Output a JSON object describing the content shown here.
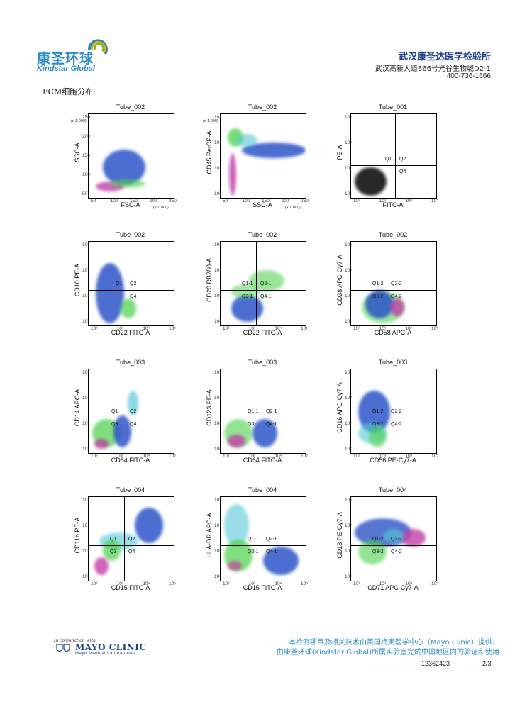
{
  "header": {
    "logo_cn": "康圣环球",
    "logo_en": "Kindstar Global",
    "org_name": "武汉康圣达医学检验所",
    "org_address": "武汉高新大道666号光谷生物城D2-1",
    "org_phone": "400-736-1666"
  },
  "section_title": "FCM细胞分布:",
  "plots": [
    {
      "title": "Tube_002",
      "xlabel": "FSC-A",
      "ylabel": "SSC-A",
      "scale_note": "(x 1,000)",
      "xticks": [
        "50",
        "100",
        "150",
        "200",
        "250"
      ],
      "yticks": [
        "250",
        "200",
        "150",
        "100",
        "50"
      ],
      "quads": []
    },
    {
      "title": "Tube_002",
      "xlabel": "SSC-A",
      "ylabel": "CD45 PerCP-A",
      "scale_note": "(x 1,000)",
      "xticks": [
        "50",
        "100",
        "150",
        "200",
        "250"
      ],
      "yticks": [
        "10⁵",
        "10⁴",
        "10³",
        "10²"
      ],
      "quads": []
    },
    {
      "title": "Tube_001",
      "xlabel": "FITC-A",
      "ylabel": "PE-A",
      "xticks": [
        "10²",
        "10³",
        "10⁴",
        "10⁵"
      ],
      "yticks": [
        "10⁵",
        "10⁴",
        "10³",
        "10²"
      ],
      "quads": [
        "Q1",
        "Q2",
        "Q4"
      ]
    },
    {
      "title": "Tube_002",
      "xlabel": "CD22 FITC-A",
      "ylabel": "CD10 PE-A",
      "xticks": [
        "10²",
        "10³",
        "10⁴",
        "10⁵"
      ],
      "yticks": [
        "10⁵",
        "10⁴",
        "10³",
        "10²"
      ],
      "quads": [
        "Q1",
        "Q2",
        "Q4"
      ]
    },
    {
      "title": "Tube_002",
      "xlabel": "CD22 FITC-A",
      "ylabel": "CD20 RB780-A",
      "xticks": [
        "10²",
        "10³",
        "10⁴",
        "10⁵"
      ],
      "yticks": [
        "10⁵",
        "10⁴",
        "10³",
        "10²"
      ],
      "quads": [
        "Q1-1",
        "Q2-1",
        "Q3-1",
        "Q4-1"
      ]
    },
    {
      "title": "Tube_002",
      "xlabel": "CD58 APC-A",
      "ylabel": "CD38 APC-Cy7-A",
      "xticks": [
        "10²",
        "10³",
        "10⁴",
        "10⁵"
      ],
      "yticks": [
        "10⁵",
        "10⁴",
        "10³",
        "10²"
      ],
      "quads": [
        "Q1-2",
        "Q2-2",
        "Q3-2",
        "Q4-2"
      ]
    },
    {
      "title": "Tube_003",
      "xlabel": "CD64 FITC-A",
      "ylabel": "CD14 APC-A",
      "xticks": [
        "10²",
        "10³",
        "10⁴",
        "10⁵"
      ],
      "yticks": [
        "10⁵",
        "10⁴",
        "10³",
        "10²"
      ],
      "quads": [
        "Q1",
        "Q2",
        "Q3",
        "Q4"
      ]
    },
    {
      "title": "Tube_003",
      "xlabel": "CD64 FITC-A",
      "ylabel": "CD123 PE-A",
      "xticks": [
        "10²",
        "10³",
        "10⁴",
        "10⁵"
      ],
      "yticks": [
        "10⁵",
        "10⁴",
        "10³",
        "10²"
      ],
      "quads": [
        "Q1-1",
        "Q2-1",
        "Q3-1",
        "Q4-1"
      ]
    },
    {
      "title": "Tube_003",
      "xlabel": "CD56 PE-Cy7-A",
      "ylabel": "CD16 APC-Cy7-A",
      "xticks": [
        "10²",
        "10³",
        "10⁴",
        "10⁵"
      ],
      "yticks": [
        "10⁵",
        "10⁴",
        "10³",
        "10²"
      ],
      "quads": [
        "Q1-2",
        "Q2-2",
        "Q3-2",
        "Q4-2"
      ]
    },
    {
      "title": "Tube_004",
      "xlabel": "CD15 FITC-A",
      "ylabel": "CD11b PE-A",
      "xticks": [
        "10²",
        "10³",
        "10⁴",
        "10⁵"
      ],
      "yticks": [
        "10⁵",
        "10⁴",
        "10³",
        "10²"
      ],
      "quads": [
        "Q1",
        "Q2",
        "Q3",
        "Q4"
      ]
    },
    {
      "title": "Tube_004",
      "xlabel": "CD15 FITC-A",
      "ylabel": "HLA-DR APC-A",
      "xticks": [
        "10²",
        "10³",
        "10⁴",
        "10⁵"
      ],
      "yticks": [
        "10⁵",
        "10⁴",
        "10³",
        "10²"
      ],
      "quads": [
        "Q1-1",
        "Q2-1",
        "Q3-1",
        "Q4-1"
      ]
    },
    {
      "title": "Tube_004",
      "xlabel": "CD71 APC-Cy7-A",
      "ylabel": "CD13 PE-Cy7-A",
      "xticks": [
        "10²",
        "10³",
        "10⁴",
        "10⁵"
      ],
      "yticks": [
        "10⁵",
        "10⁴",
        "10³",
        "10²"
      ],
      "quads": [
        "Q1-2",
        "Q2-2",
        "Q3-2",
        "Q4-2"
      ]
    }
  ],
  "footer": {
    "mayo_small": "In conjunction with",
    "mayo_name": "MAYO CLINIC",
    "mayo_sub": "Mayo Medical Laboratories",
    "note_line1": "本检测项目及相关技术由美国梅奥医学中心（Mayo Clinic）提供，",
    "note_line2": "由康圣环球(Kindstar Global)所属实验室完成中国地区内的验证和使用",
    "report_id": "12362423",
    "page": "2/3"
  },
  "colors": {
    "brand_blue": "#2a8ac3",
    "navy": "#1d3f8b",
    "cells_blue": "#2c55c8",
    "cells_green": "#4bd14a",
    "cells_cyan": "#56c9d6",
    "cells_magenta": "#c23fa8"
  }
}
